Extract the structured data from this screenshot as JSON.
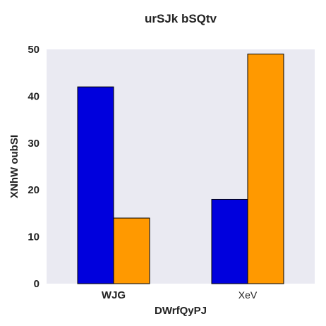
{
  "chart_data": {
    "type": "bar",
    "title": "urSJk  bSQtv",
    "xlabel": "DWrfQyPJ",
    "ylabel": "XNhW oubSI",
    "categories": [
      "WJG",
      "XeV"
    ],
    "series": [
      {
        "values": [
          42,
          18
        ],
        "color": "#0000dd"
      },
      {
        "values": [
          14,
          49
        ],
        "color": "#ff9900"
      }
    ],
    "ylim": [
      0,
      50
    ],
    "yticks": [
      0,
      10,
      20,
      30,
      40,
      50
    ],
    "grid": false,
    "background": "#eaeaf2"
  }
}
